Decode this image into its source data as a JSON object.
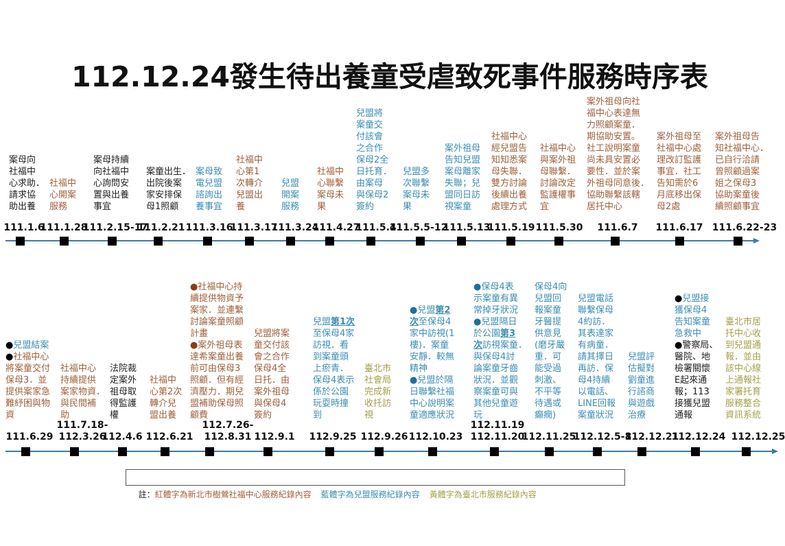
{
  "title": "112.12.24發生待出養童受虐致死事件服務時序表",
  "colors": {
    "black": "#222222",
    "brown": "#a0603c",
    "blue": "#3b8db4",
    "olive": "#a3a048",
    "axis": "#3d7aa8"
  },
  "top_row": [
    {
      "date": "111.1.6",
      "paras": [
        {
          "color": "black",
          "segs": [
            {
              "t": "案母向\n社福中\n心求助．\n請求協\n助出養"
            }
          ]
        }
      ]
    },
    {
      "date": "111.1.28",
      "paras": [
        {
          "color": "brown",
          "segs": [
            {
              "t": "社福中\n心開案\n服務"
            }
          ]
        }
      ]
    },
    {
      "date": "111.2.15-17",
      "paras": [
        {
          "color": "black",
          "segs": [
            {
              "t": "案母持續\n向社福中\n心詢問安\n置與出養\n事宜"
            }
          ]
        }
      ]
    },
    {
      "date": "111.2.21",
      "paras": [
        {
          "color": "black",
          "segs": [
            {
              "t": "案童出生．\n出院後案\n家安排保\n母1照顧"
            }
          ]
        }
      ]
    },
    {
      "date": "111.3.16",
      "paras": [
        {
          "color": "blue",
          "segs": [
            {
              "t": "案母致\n電兒盟\n諮詢出\n養事宜"
            }
          ]
        }
      ]
    },
    {
      "date": "111.3.17",
      "paras": [
        {
          "color": "brown",
          "segs": [
            {
              "t": "社福中\n心第1\n次轉介\n兒盟出\n養"
            }
          ]
        }
      ]
    },
    {
      "date": "111.3.24",
      "paras": [
        {
          "color": "blue",
          "segs": [
            {
              "t": "兒盟\n開案\n服務"
            }
          ]
        }
      ]
    },
    {
      "date": "111.4.27",
      "paras": [
        {
          "color": "brown",
          "segs": [
            {
              "t": "社福中\n心聯繫\n案母未\n果"
            }
          ]
        }
      ]
    },
    {
      "date": "111.5.4",
      "paras": [
        {
          "color": "blue",
          "segs": [
            {
              "t": "兒盟將\n案童交\n付該會\n之合作\n保母2全\n日托育．\n由案母\n與保母2\n簽約"
            }
          ]
        }
      ]
    },
    {
      "date": "111.5.5-12",
      "paras": [
        {
          "color": "blue",
          "segs": [
            {
              "t": "兒盟多\n次聯繫\n案母未\n果"
            }
          ]
        }
      ]
    },
    {
      "date": "111.5.13",
      "paras": [
        {
          "color": "blue",
          "segs": [
            {
              "t": "案外祖母\n告知兒盟\n案母離家\n失聯；兒\n盟同日訪\n視案童"
            }
          ]
        }
      ]
    },
    {
      "date": "111.5.19",
      "paras": [
        {
          "color": "brown",
          "segs": [
            {
              "t": "社福中心\n經兒盟告\n知知悉案\n母失聯．\n雙方討論\n後續出養\n處理方式"
            }
          ]
        }
      ]
    },
    {
      "date": "111.5.30",
      "paras": [
        {
          "color": "brown",
          "segs": [
            {
              "t": "社福中心\n與案外祖\n母聯繫．\n討論改定\n監護權事\n宜"
            }
          ]
        }
      ]
    },
    {
      "date": "111.6.7",
      "paras": [
        {
          "color": "brown",
          "segs": [
            {
              "t": "案外祖母向社\n福中心表達無\n力照顧案童．\n期協助安置。\n社工說明案童\n尚未具安置必\n要性．並於案\n外祖母同意後．\n協助聯繫該轄\n居托中心"
            }
          ]
        }
      ]
    },
    {
      "date": "111.6.17",
      "paras": [
        {
          "color": "brown",
          "segs": [
            {
              "t": "案外祖母至\n社福中心處\n理改訂監護\n事宜．社工\n告知需於6\n月底移出保\n母2處"
            }
          ]
        }
      ]
    },
    {
      "date": "111.6.22-23",
      "paras": [
        {
          "color": "brown",
          "segs": [
            {
              "t": "案外祖母告\n知社福中心．\n已自行洽請\n曾照顧過案\n姐之保母3\n協助案童後\n續照顧事宜"
            }
          ]
        }
      ]
    }
  ],
  "bottom_row": [
    {
      "date": "111.6.29",
      "paras": [
        {
          "color": "blue",
          "bullet": "black",
          "segs": [
            {
              "t": "兒盟結案"
            }
          ]
        },
        {
          "color": "brown",
          "bullet": "black",
          "segs": [
            {
              "t": "社福中心\n將案童交付\n保母3．並\n提供案家急\n難紓困與物\n資"
            }
          ]
        }
      ]
    },
    {
      "date": "111.7.18-\n112.3.26",
      "paras": [
        {
          "color": "brown",
          "segs": [
            {
              "t": "社福中心\n持續提供\n案家物資．\n與民間補\n助"
            }
          ]
        }
      ]
    },
    {
      "date": "112.4.6",
      "paras": [
        {
          "color": "black",
          "segs": [
            {
              "t": "法院裁\n定案外\n祖母取\n得監護\n權"
            }
          ]
        }
      ]
    },
    {
      "date": "112.6.21",
      "paras": [
        {
          "color": "brown",
          "segs": [
            {
              "t": "社福中\n心第2次\n轉介兒\n盟出養"
            }
          ]
        }
      ]
    },
    {
      "date": "112.7.26-\n112.8.31",
      "paras": [
        {
          "color": "brown",
          "bullet": "brown",
          "segs": [
            {
              "t": "社福中心持\n續提供物資予\n案家．並連繫\n討論案童照顧\n計畫"
            }
          ]
        },
        {
          "color": "brown",
          "bullet": "brown",
          "segs": [
            {
              "t": "案外祖母表\n達希案童出養\n前可由保母3\n照顧．但有經\n濟壓力．期兒\n盟補助保母照\n顧費"
            }
          ]
        }
      ]
    },
    {
      "date": "112.9.1",
      "paras": [
        {
          "color": "brown",
          "segs": [
            {
              "t": "兒盟將案\n童交付該\n會之合作\n保母4全\n日托．由\n案外祖母\n與保母4\n簽約"
            }
          ]
        }
      ]
    },
    {
      "date": "112.9.25",
      "paras": [
        {
          "color": "blue",
          "segs": [
            {
              "t": "兒盟"
            },
            {
              "t": "第1次",
              "b": true
            },
            {
              "t": "\n至保母4家\n訪視．看\n到案童頭\n上瘀青．\n保母4表示\n係於公園\n玩耍時撞\n到"
            }
          ]
        }
      ]
    },
    {
      "date": "112.9.26",
      "paras": [
        {
          "color": "olive",
          "segs": [
            {
              "t": "臺北市\n社會局\n完成新\n收托訪\n視"
            }
          ]
        }
      ]
    },
    {
      "date": "112.10.23",
      "paras": [
        {
          "color": "blue",
          "bullet": "blue",
          "segs": [
            {
              "t": "兒盟"
            },
            {
              "t": "第2\n次",
              "b": true
            },
            {
              "t": "至保母4\n家中訪視(1\n樓)．案童\n安靜．較無\n精神"
            }
          ]
        },
        {
          "color": "blue",
          "bullet": "blue",
          "segs": [
            {
              "t": "兒盟於隔\n日聯繫社福\n中心說明案\n童適應狀況"
            }
          ]
        }
      ]
    },
    {
      "date": "112.11.19\n112.11.20",
      "paras": [
        {
          "color": "blue",
          "bullet": "blue",
          "segs": [
            {
              "t": "保母4表\n示案童有異\n常掉牙狀況"
            }
          ]
        },
        {
          "color": "blue",
          "bullet": "blue",
          "segs": [
            {
              "t": "兒盟隔日\n於公園"
            },
            {
              "t": "第3\n次",
              "b": true
            },
            {
              "t": "訪視案童．\n與保母4討\n論案童牙齒\n狀況．並觀\n察案童可與\n其他兒童遊\n玩"
            }
          ]
        }
      ]
    },
    {
      "date": "112.11.25",
      "paras": [
        {
          "color": "blue",
          "segs": [
            {
              "t": "保母4向\n兒盟回\n報案童\n牙醫提\n供意見\n(磨牙嚴\n重．可\n能受過\n刺激、\n不平等\n待遇或\n癲癇)"
            }
          ]
        }
      ]
    },
    {
      "date": "112.12.5-8",
      "paras": [
        {
          "color": "blue",
          "segs": [
            {
              "t": "兒盟電話\n聯繫保母\n4約訪．\n其表達家\n有病童．\n請其擇日\n再訪．保\n母4持續\n以電話、\nLINE回報\n案童狀況"
            }
          ]
        }
      ]
    },
    {
      "date": "112.12.21",
      "paras": [
        {
          "color": "blue",
          "segs": [
            {
              "t": "兒盟評\n估擬對\n劉童進\n行諮商\n與遊戲\n治療"
            }
          ]
        }
      ]
    },
    {
      "date": "112.12.24",
      "paras": [
        {
          "color": "blue",
          "bullet": "black",
          "segs": [
            {
              "t": "兒盟接\n獲保母4\n告知案童\n急救中"
            }
          ]
        },
        {
          "color": "black",
          "bullet": "black",
          "segs": [
            {
              "t": "警察局、\n醫院、地\n檢署關懷\nE起來通\n報；113\n接獲兒盟\n通報"
            }
          ]
        }
      ]
    },
    {
      "date": "112.12.25",
      "paras": [
        {
          "color": "olive",
          "segs": [
            {
              "t": "臺北市居\n托中心收\n到兒盟通\n報．並由\n該中心線\n上通報社\n家署托育\n服務整合\n資訊系統"
            }
          ]
        }
      ]
    }
  ],
  "legend": {
    "prefix": "註：",
    "red": "紅體字為新北市樹鶯社福中心服務紀錄內容",
    "blue": "藍體字為兒盟服務紀錄內容",
    "yellow": "黃體字為臺北市服務紀錄內容"
  }
}
